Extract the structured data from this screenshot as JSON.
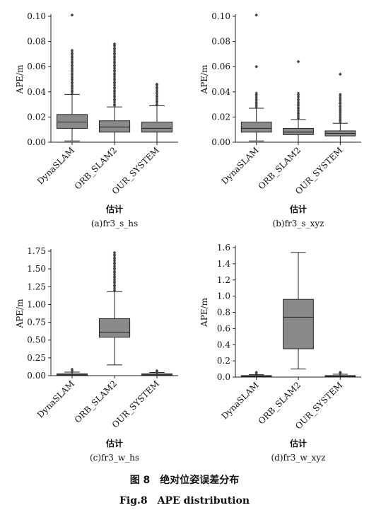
{
  "figure": {
    "caption_cn": "图 8　绝对位姿误差分布",
    "caption_en": "Fig.8　APE distribution"
  },
  "chart_data": [
    {
      "type": "box",
      "subtitle": "(a)fr3_s_hs",
      "xlabel": "估计",
      "ylabel": "APE/m",
      "ylim": [
        0,
        0.1
      ],
      "yticks": [
        "0.00",
        "0.02",
        "0.04",
        "0.06",
        "0.08",
        "0.10"
      ],
      "categories": [
        "DynaSLAM",
        "ORB_SLAM2",
        "OUR_SYSTEM"
      ],
      "boxes": [
        {
          "whisker_low": 0.001,
          "q1": 0.011,
          "median": 0.016,
          "q3": 0.022,
          "whisker_high": 0.038,
          "outliers_from": 0.039,
          "outliers_to": 0.073,
          "max": 0.101
        },
        {
          "whisker_low": 0.0,
          "q1": 0.008,
          "median": 0.012,
          "q3": 0.017,
          "whisker_high": 0.028,
          "outliers_from": 0.029,
          "outliers_to": 0.078,
          "max": 0.078
        },
        {
          "whisker_low": 0.0,
          "q1": 0.008,
          "median": 0.011,
          "q3": 0.016,
          "whisker_high": 0.029,
          "outliers_from": 0.03,
          "outliers_to": 0.046,
          "max": 0.046
        }
      ]
    },
    {
      "type": "box",
      "subtitle": "(b)fr3_s_xyz",
      "xlabel": "估计",
      "ylabel": "APE/m",
      "ylim": [
        0,
        0.1
      ],
      "yticks": [
        "0.00",
        "0.02",
        "0.04",
        "0.06",
        "0.08",
        "0.10"
      ],
      "categories": [
        "DynaSLAM",
        "ORB_SLAM2",
        "OUR_SYSTEM"
      ],
      "boxes": [
        {
          "whisker_low": 0.001,
          "q1": 0.008,
          "median": 0.011,
          "q3": 0.016,
          "whisker_high": 0.027,
          "outliers_from": 0.028,
          "outliers_to": 0.039,
          "extra": [
            0.06,
            0.101
          ]
        },
        {
          "whisker_low": 0.0,
          "q1": 0.006,
          "median": 0.008,
          "q3": 0.011,
          "whisker_high": 0.018,
          "outliers_from": 0.019,
          "outliers_to": 0.039,
          "extra": [
            0.064
          ]
        },
        {
          "whisker_low": 0.0,
          "q1": 0.005,
          "median": 0.007,
          "q3": 0.009,
          "whisker_high": 0.015,
          "outliers_from": 0.016,
          "outliers_to": 0.038,
          "extra": [
            0.054
          ]
        }
      ]
    },
    {
      "type": "box",
      "subtitle": "(c)fr3_w_hs",
      "xlabel": "估计",
      "ylabel": "APE/m",
      "ylim": [
        0,
        1.75
      ],
      "yticks": [
        "0.00",
        "0.25",
        "0.50",
        "0.75",
        "1.00",
        "1.25",
        "1.50",
        "1.75"
      ],
      "categories": [
        "DynaSLAM",
        "ORB_SLAM2",
        "OUR_SYSTEM"
      ],
      "boxes": [
        {
          "whisker_low": 0.0,
          "q1": 0.005,
          "median": 0.012,
          "q3": 0.025,
          "whisker_high": 0.05,
          "outliers_from": 0.05,
          "outliers_to": 0.09
        },
        {
          "whisker_low": 0.15,
          "q1": 0.54,
          "median": 0.61,
          "q3": 0.8,
          "whisker_high": 1.18,
          "outliers_from": 1.2,
          "outliers_to": 1.73
        },
        {
          "whisker_low": 0.0,
          "q1": 0.005,
          "median": 0.012,
          "q3": 0.025,
          "whisker_high": 0.045,
          "outliers_from": 0.045,
          "outliers_to": 0.07
        }
      ]
    },
    {
      "type": "box",
      "subtitle": "(d)fr3_w_xyz",
      "xlabel": "估计",
      "ylabel": "APE/m",
      "ylim": [
        0,
        1.6
      ],
      "yticks": [
        "0.0",
        "0.2",
        "0.4",
        "0.6",
        "0.8",
        "1.0",
        "1.2",
        "1.4",
        "1.6"
      ],
      "categories": [
        "DynaSLAM",
        "ORB_SLAM2",
        "OUR_SYSTEM"
      ],
      "boxes": [
        {
          "whisker_low": 0.0,
          "q1": 0.005,
          "median": 0.01,
          "q3": 0.018,
          "whisker_high": 0.03,
          "outliers_from": 0.03,
          "outliers_to": 0.06
        },
        {
          "whisker_low": 0.1,
          "q1": 0.35,
          "median": 0.74,
          "q3": 0.96,
          "whisker_high": 1.54,
          "outliers_from": null,
          "outliers_to": null
        },
        {
          "whisker_low": 0.0,
          "q1": 0.005,
          "median": 0.01,
          "q3": 0.018,
          "whisker_high": 0.035,
          "outliers_from": 0.035,
          "outliers_to": 0.06
        }
      ]
    }
  ]
}
